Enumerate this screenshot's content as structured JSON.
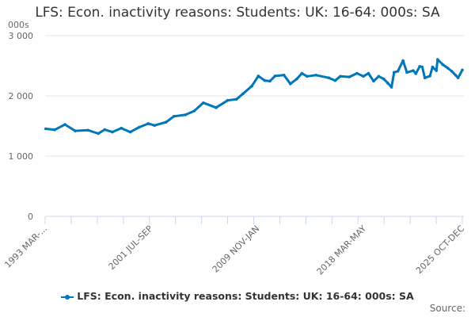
{
  "chart_data": {
    "type": "line",
    "title": "LFS: Econ. inactivity reasons: Students: UK: 16-64: 000s: SA",
    "ylabel": "000s",
    "xlabel": "",
    "ylim": [
      0,
      3000
    ],
    "yticks": [
      "0",
      "1 000",
      "2 000",
      "3 000"
    ],
    "ytick_values": [
      0,
      1000,
      2000,
      3000
    ],
    "xlim": [
      1993.25,
      2025.83
    ],
    "xtick_labels": [
      "1993 MAR-...",
      "2001 JUL-SEP",
      "2009 NOV-JAN",
      "2018 MAR-MAY",
      "2025 OCT-DEC"
    ],
    "xtick_label_values": [
      1993.25,
      2001.5,
      2009.83,
      2018.17,
      2025.83
    ],
    "grid": true,
    "legend_position": "bottom",
    "color": "#0077bb",
    "series": [
      {
        "name": "LFS: Econ. inactivity reasons: Students: UK: 16-64: 000s: SA",
        "x": [
          1993.3,
          1994.0,
          1994.8,
          1995.6,
          1996.6,
          1997.4,
          1997.9,
          1998.5,
          1999.2,
          1999.9,
          2000.6,
          2001.3,
          2001.8,
          2002.7,
          2003.3,
          2004.2,
          2004.9,
          2005.6,
          2006.6,
          2007.5,
          2008.2,
          2008.7,
          2009.4,
          2009.9,
          2010.4,
          2010.8,
          2011.2,
          2011.9,
          2012.4,
          2012.9,
          2013.3,
          2013.7,
          2014.4,
          2015.4,
          2015.9,
          2016.3,
          2017.0,
          2017.6,
          2018.1,
          2018.5,
          2018.9,
          2019.3,
          2019.7,
          2020.0,
          2020.3,
          2020.5,
          2020.8,
          2021.2,
          2021.5,
          2022.0,
          2022.2,
          2022.5,
          2022.7,
          2022.9,
          2023.3,
          2023.5,
          2023.8,
          2023.9,
          2024.3,
          2024.7,
          2025.0,
          2025.3,
          2025.5,
          2025.83
        ],
        "values": [
          1454,
          1437,
          1525,
          1420,
          1430,
          1375,
          1440,
          1400,
          1465,
          1400,
          1480,
          1540,
          1510,
          1565,
          1660,
          1685,
          1750,
          1885,
          1805,
          1925,
          1945,
          2035,
          2165,
          2330,
          2255,
          2245,
          2330,
          2345,
          2200,
          2280,
          2375,
          2325,
          2345,
          2300,
          2255,
          2325,
          2315,
          2375,
          2325,
          2375,
          2245,
          2325,
          2280,
          2215,
          2145,
          2390,
          2410,
          2585,
          2390,
          2420,
          2370,
          2490,
          2480,
          2300,
          2330,
          2480,
          2420,
          2605,
          2520,
          2460,
          2410,
          2345,
          2300,
          2430
        ]
      }
    ]
  },
  "legend": {
    "label": "LFS: Econ. inactivity reasons: Students: UK: 16-64: 000s: SA"
  },
  "source_label": "Source:"
}
